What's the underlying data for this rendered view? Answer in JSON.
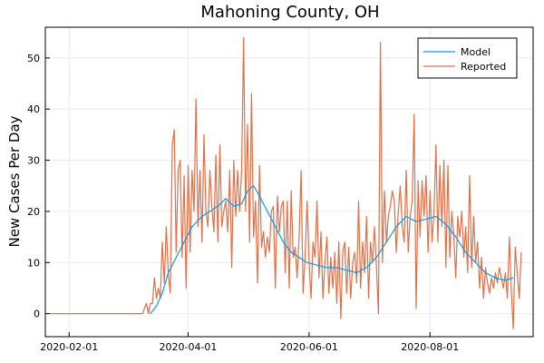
{
  "chart_data": {
    "type": "line",
    "title": "Mahoning County, OH",
    "xlabel": "",
    "ylabel": "New Cases Per Day",
    "x_axis_type": "date",
    "xlim": [
      "2020-01-20",
      "2020-09-22"
    ],
    "ylim": [
      -4.5,
      56
    ],
    "x_ticks": [
      "2020-02-01",
      "2020-04-01",
      "2020-06-01",
      "2020-08-01"
    ],
    "y_ticks": [
      0,
      10,
      20,
      30,
      40,
      50
    ],
    "grid": true,
    "legend_position": "top-right",
    "colors": {
      "Model": "#009af9",
      "Reported": "#e26f46"
    },
    "series": [
      {
        "name": "Model",
        "points": [
          [
            "2020-03-13",
            0
          ],
          [
            "2020-03-16",
            1.5
          ],
          [
            "2020-03-19",
            4
          ],
          [
            "2020-03-22",
            8
          ],
          [
            "2020-03-26",
            11
          ],
          [
            "2020-03-30",
            14
          ],
          [
            "2020-04-03",
            17
          ],
          [
            "2020-04-08",
            19
          ],
          [
            "2020-04-12",
            20
          ],
          [
            "2020-04-16",
            21
          ],
          [
            "2020-04-20",
            22.5
          ],
          [
            "2020-04-24",
            21
          ],
          [
            "2020-04-28",
            21.5
          ],
          [
            "2020-05-01",
            24
          ],
          [
            "2020-05-04",
            25
          ],
          [
            "2020-05-07",
            23
          ],
          [
            "2020-05-11",
            20
          ],
          [
            "2020-05-15",
            17
          ],
          [
            "2020-05-19",
            14
          ],
          [
            "2020-05-23",
            12
          ],
          [
            "2020-05-27",
            11
          ],
          [
            "2020-05-31",
            10
          ],
          [
            "2020-06-05",
            9.5
          ],
          [
            "2020-06-10",
            9
          ],
          [
            "2020-06-15",
            9
          ],
          [
            "2020-06-20",
            8.5
          ],
          [
            "2020-06-25",
            8
          ],
          [
            "2020-06-30",
            9
          ],
          [
            "2020-07-05",
            11
          ],
          [
            "2020-07-10",
            14
          ],
          [
            "2020-07-15",
            17
          ],
          [
            "2020-07-20",
            19
          ],
          [
            "2020-07-25",
            18
          ],
          [
            "2020-07-30",
            18.5
          ],
          [
            "2020-08-04",
            19
          ],
          [
            "2020-08-09",
            17.5
          ],
          [
            "2020-08-14",
            15
          ],
          [
            "2020-08-19",
            12
          ],
          [
            "2020-08-24",
            10
          ],
          [
            "2020-08-29",
            8
          ],
          [
            "2020-09-03",
            7
          ],
          [
            "2020-09-08",
            6.5
          ],
          [
            "2020-09-12",
            7
          ]
        ]
      },
      {
        "name": "Reported",
        "points": [
          [
            "2020-01-22",
            0
          ],
          [
            "2020-03-09",
            0
          ],
          [
            "2020-03-11",
            2
          ],
          [
            "2020-03-12",
            0
          ],
          [
            "2020-03-13",
            2
          ],
          [
            "2020-03-14",
            2
          ],
          [
            "2020-03-15",
            7
          ],
          [
            "2020-03-16",
            3
          ],
          [
            "2020-03-17",
            5
          ],
          [
            "2020-03-18",
            3
          ],
          [
            "2020-03-19",
            14
          ],
          [
            "2020-03-20",
            6
          ],
          [
            "2020-03-21",
            17
          ],
          [
            "2020-03-22",
            8
          ],
          [
            "2020-03-23",
            4
          ],
          [
            "2020-03-24",
            33
          ],
          [
            "2020-03-25",
            36
          ],
          [
            "2020-03-26",
            12
          ],
          [
            "2020-03-27",
            28
          ],
          [
            "2020-03-28",
            30
          ],
          [
            "2020-03-29",
            11
          ],
          [
            "2020-03-30",
            27
          ],
          [
            "2020-03-31",
            5
          ],
          [
            "2020-04-01",
            29
          ],
          [
            "2020-04-02",
            12
          ],
          [
            "2020-04-03",
            28
          ],
          [
            "2020-04-04",
            20
          ],
          [
            "2020-04-05",
            42
          ],
          [
            "2020-04-06",
            17
          ],
          [
            "2020-04-07",
            28
          ],
          [
            "2020-04-08",
            14
          ],
          [
            "2020-04-09",
            35
          ],
          [
            "2020-04-10",
            20
          ],
          [
            "2020-04-11",
            17
          ],
          [
            "2020-04-12",
            28
          ],
          [
            "2020-04-13",
            21
          ],
          [
            "2020-04-14",
            16
          ],
          [
            "2020-04-15",
            31
          ],
          [
            "2020-04-16",
            14
          ],
          [
            "2020-04-17",
            33
          ],
          [
            "2020-04-18",
            17
          ],
          [
            "2020-04-19",
            20
          ],
          [
            "2020-04-20",
            22
          ],
          [
            "2020-04-21",
            16
          ],
          [
            "2020-04-22",
            28
          ],
          [
            "2020-04-23",
            9
          ],
          [
            "2020-04-24",
            30
          ],
          [
            "2020-04-25",
            19
          ],
          [
            "2020-04-26",
            28
          ],
          [
            "2020-04-27",
            20
          ],
          [
            "2020-04-28",
            28
          ],
          [
            "2020-04-29",
            54
          ],
          [
            "2020-04-30",
            20
          ],
          [
            "2020-05-01",
            37
          ],
          [
            "2020-05-02",
            14
          ],
          [
            "2020-05-03",
            43
          ],
          [
            "2020-05-04",
            15
          ],
          [
            "2020-05-05",
            22
          ],
          [
            "2020-05-06",
            6
          ],
          [
            "2020-05-07",
            29
          ],
          [
            "2020-05-08",
            13
          ],
          [
            "2020-05-09",
            16
          ],
          [
            "2020-05-10",
            11
          ],
          [
            "2020-05-11",
            15
          ],
          [
            "2020-05-12",
            12
          ],
          [
            "2020-05-13",
            20
          ],
          [
            "2020-05-14",
            21
          ],
          [
            "2020-05-15",
            5
          ],
          [
            "2020-05-16",
            23
          ],
          [
            "2020-05-17",
            16
          ],
          [
            "2020-05-18",
            21
          ],
          [
            "2020-05-19",
            22
          ],
          [
            "2020-05-20",
            8
          ],
          [
            "2020-05-21",
            22
          ],
          [
            "2020-05-22",
            5
          ],
          [
            "2020-05-23",
            24
          ],
          [
            "2020-05-24",
            11
          ],
          [
            "2020-05-25",
            13
          ],
          [
            "2020-05-26",
            7
          ],
          [
            "2020-05-27",
            15
          ],
          [
            "2020-05-28",
            28
          ],
          [
            "2020-05-29",
            4
          ],
          [
            "2020-05-30",
            11
          ],
          [
            "2020-05-31",
            22
          ],
          [
            "2020-06-01",
            10
          ],
          [
            "2020-06-02",
            3
          ],
          [
            "2020-06-03",
            14
          ],
          [
            "2020-06-04",
            11
          ],
          [
            "2020-06-05",
            22
          ],
          [
            "2020-06-06",
            7
          ],
          [
            "2020-06-07",
            16
          ],
          [
            "2020-06-08",
            3
          ],
          [
            "2020-06-09",
            10
          ],
          [
            "2020-06-10",
            15
          ],
          [
            "2020-06-11",
            4
          ],
          [
            "2020-06-12",
            11
          ],
          [
            "2020-06-13",
            5
          ],
          [
            "2020-06-14",
            12
          ],
          [
            "2020-06-15",
            2
          ],
          [
            "2020-06-16",
            14
          ],
          [
            "2020-06-17",
            -1
          ],
          [
            "2020-06-18",
            12
          ],
          [
            "2020-06-19",
            14
          ],
          [
            "2020-06-20",
            4
          ],
          [
            "2020-06-21",
            13
          ],
          [
            "2020-06-22",
            3
          ],
          [
            "2020-06-23",
            10
          ],
          [
            "2020-06-24",
            12
          ],
          [
            "2020-06-25",
            6
          ],
          [
            "2020-06-26",
            22
          ],
          [
            "2020-06-27",
            5
          ],
          [
            "2020-06-28",
            14
          ],
          [
            "2020-06-29",
            8
          ],
          [
            "2020-06-30",
            19
          ],
          [
            "2020-07-01",
            3
          ],
          [
            "2020-07-02",
            14
          ],
          [
            "2020-07-03",
            10
          ],
          [
            "2020-07-04",
            17
          ],
          [
            "2020-07-05",
            9
          ],
          [
            "2020-07-06",
            0
          ],
          [
            "2020-07-07",
            53
          ],
          [
            "2020-07-08",
            10
          ],
          [
            "2020-07-09",
            24
          ],
          [
            "2020-07-10",
            14
          ],
          [
            "2020-07-11",
            19
          ],
          [
            "2020-07-12",
            21
          ],
          [
            "2020-07-13",
            24
          ],
          [
            "2020-07-14",
            22
          ],
          [
            "2020-07-15",
            12
          ],
          [
            "2020-07-16",
            20
          ],
          [
            "2020-07-17",
            25
          ],
          [
            "2020-07-18",
            17
          ],
          [
            "2020-07-19",
            14
          ],
          [
            "2020-07-20",
            28
          ],
          [
            "2020-07-21",
            12
          ],
          [
            "2020-07-22",
            19
          ],
          [
            "2020-07-23",
            22
          ],
          [
            "2020-07-24",
            39
          ],
          [
            "2020-07-25",
            1
          ],
          [
            "2020-07-26",
            26
          ],
          [
            "2020-07-27",
            15
          ],
          [
            "2020-07-28",
            26
          ],
          [
            "2020-07-29",
            19
          ],
          [
            "2020-07-30",
            27
          ],
          [
            "2020-07-31",
            12
          ],
          [
            "2020-08-01",
            24
          ],
          [
            "2020-08-02",
            14
          ],
          [
            "2020-08-03",
            20
          ],
          [
            "2020-08-04",
            33
          ],
          [
            "2020-08-05",
            14
          ],
          [
            "2020-08-06",
            29
          ],
          [
            "2020-08-07",
            17
          ],
          [
            "2020-08-08",
            30
          ],
          [
            "2020-08-09",
            9
          ],
          [
            "2020-08-10",
            29
          ],
          [
            "2020-08-11",
            11
          ],
          [
            "2020-08-12",
            20
          ],
          [
            "2020-08-13",
            15
          ],
          [
            "2020-08-14",
            7
          ],
          [
            "2020-08-15",
            19
          ],
          [
            "2020-08-16",
            15
          ],
          [
            "2020-08-17",
            20
          ],
          [
            "2020-08-18",
            11
          ],
          [
            "2020-08-19",
            17
          ],
          [
            "2020-08-20",
            8
          ],
          [
            "2020-08-21",
            27
          ],
          [
            "2020-08-22",
            9
          ],
          [
            "2020-08-23",
            19
          ],
          [
            "2020-08-24",
            10
          ],
          [
            "2020-08-25",
            14
          ],
          [
            "2020-08-26",
            5
          ],
          [
            "2020-08-27",
            11
          ],
          [
            "2020-08-28",
            3
          ],
          [
            "2020-08-29",
            9
          ],
          [
            "2020-08-30",
            6
          ],
          [
            "2020-08-31",
            4
          ],
          [
            "2020-09-01",
            7
          ],
          [
            "2020-09-02",
            5
          ],
          [
            "2020-09-03",
            8
          ],
          [
            "2020-09-04",
            6
          ],
          [
            "2020-09-05",
            9
          ],
          [
            "2020-09-06",
            7
          ],
          [
            "2020-09-07",
            5
          ],
          [
            "2020-09-08",
            8
          ],
          [
            "2020-09-09",
            3
          ],
          [
            "2020-09-10",
            15
          ],
          [
            "2020-09-11",
            5
          ],
          [
            "2020-09-12",
            -3
          ],
          [
            "2020-09-13",
            13
          ],
          [
            "2020-09-14",
            8
          ],
          [
            "2020-09-15",
            3
          ],
          [
            "2020-09-16",
            12
          ]
        ]
      }
    ]
  }
}
